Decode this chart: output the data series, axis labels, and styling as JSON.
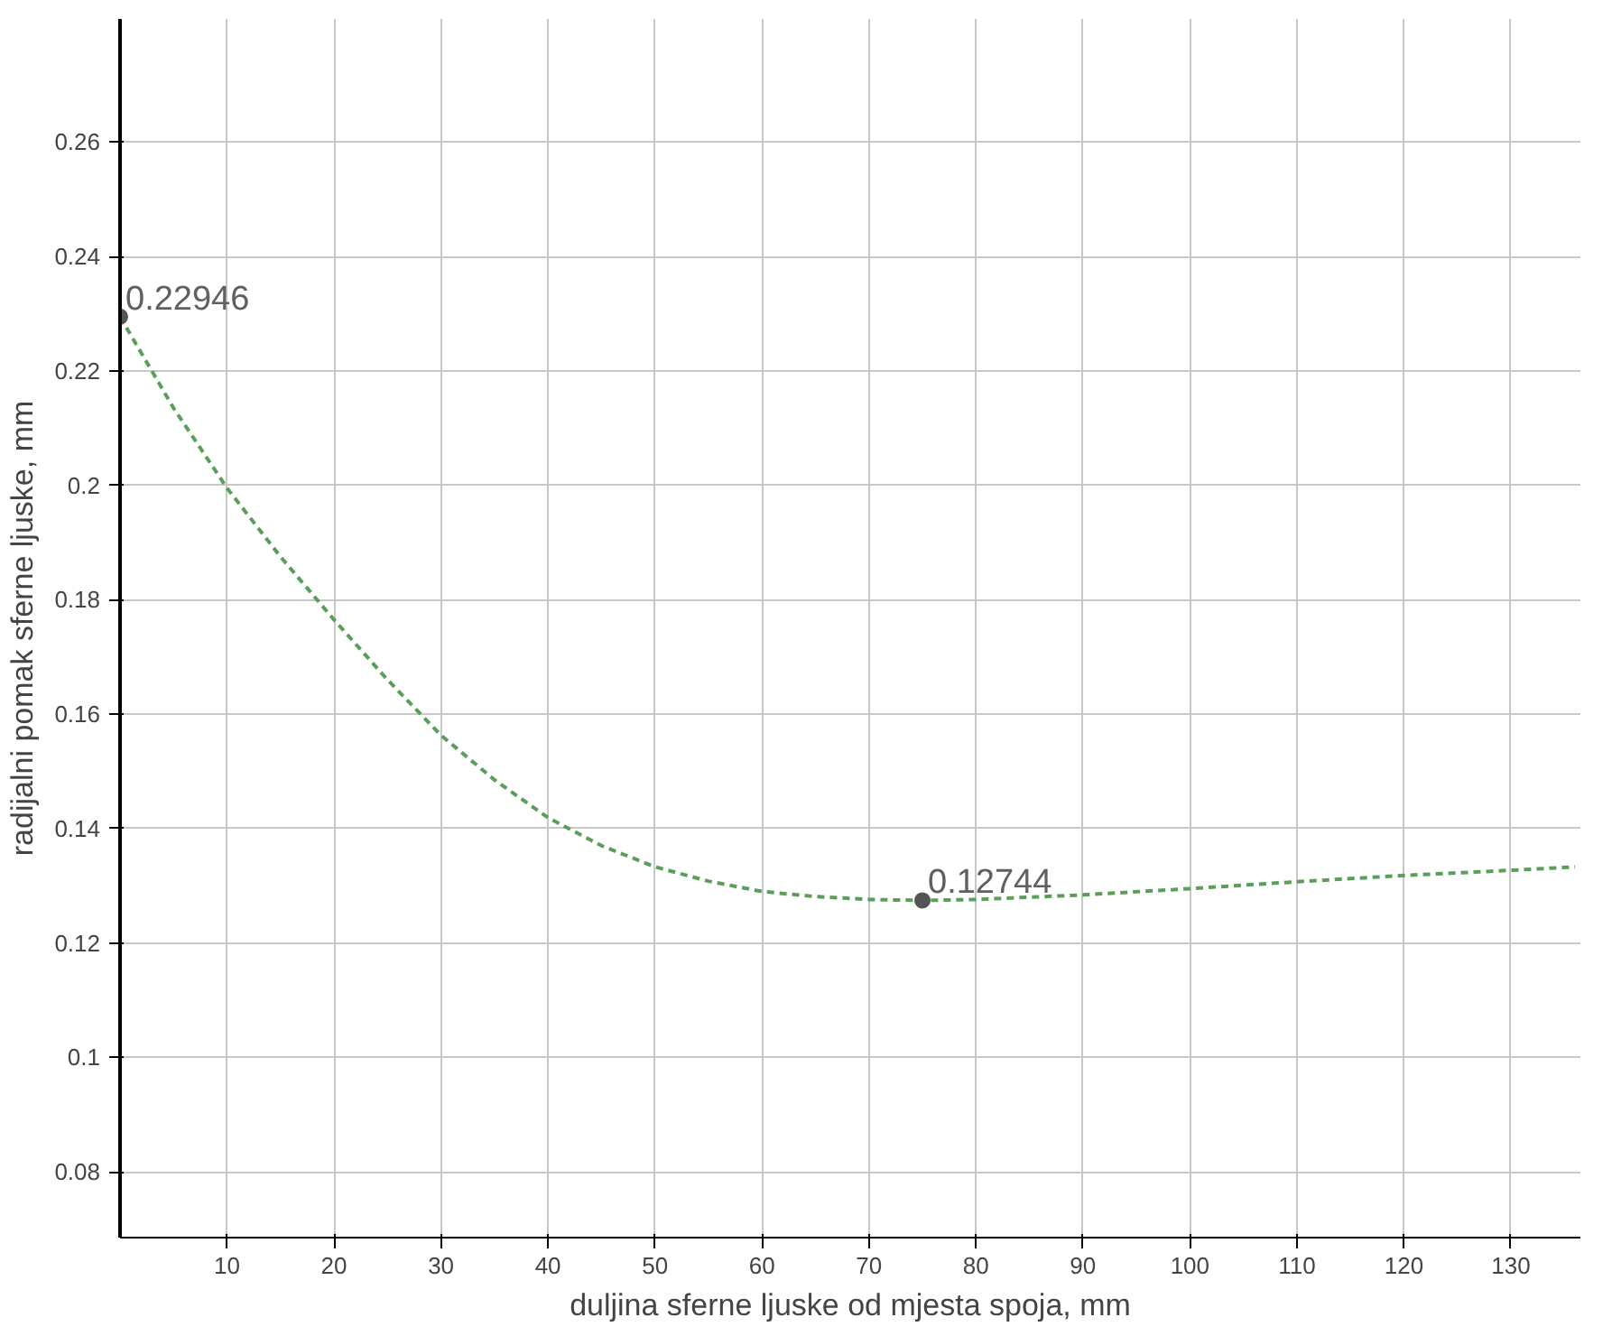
{
  "chart_data": {
    "type": "line",
    "xlabel": "duljina sferne ljuske od mjesta spoja, mm",
    "ylabel": "radijalni pomak sferne ljuske, mm",
    "x": [
      0,
      5,
      10,
      15,
      20,
      25,
      30,
      35,
      40,
      45,
      50,
      55,
      60,
      65,
      70,
      75,
      80,
      90,
      100,
      110,
      120,
      130,
      136
    ],
    "series": [
      {
        "color": "#5a9e5a",
        "values": [
          0.22946,
          0.2135,
          0.1995,
          0.1875,
          0.1765,
          0.166,
          0.1563,
          0.1485,
          0.1419,
          0.137,
          0.1333,
          0.1308,
          0.129,
          0.1281,
          0.1276,
          0.12744,
          0.1276,
          0.1284,
          0.1295,
          0.1307,
          0.1318,
          0.1327,
          0.1333
        ]
      }
    ],
    "annotations": [
      {
        "text": "0.22946",
        "x": 0,
        "y": 0.22946
      },
      {
        "text": "0.12744",
        "x": 75,
        "y": 0.12744
      }
    ],
    "xlim": [
      0,
      136.5
    ],
    "ylim": [
      0.0685,
      0.2815
    ],
    "xticks": [
      10,
      20,
      30,
      40,
      50,
      60,
      70,
      80,
      90,
      100,
      110,
      120,
      130
    ],
    "yticks": [
      0.08,
      0.1,
      0.12,
      0.14,
      0.16,
      0.18,
      0.2,
      0.22,
      0.24,
      0.26
    ],
    "grid": true,
    "marker": "none",
    "line_style": "dashed"
  }
}
